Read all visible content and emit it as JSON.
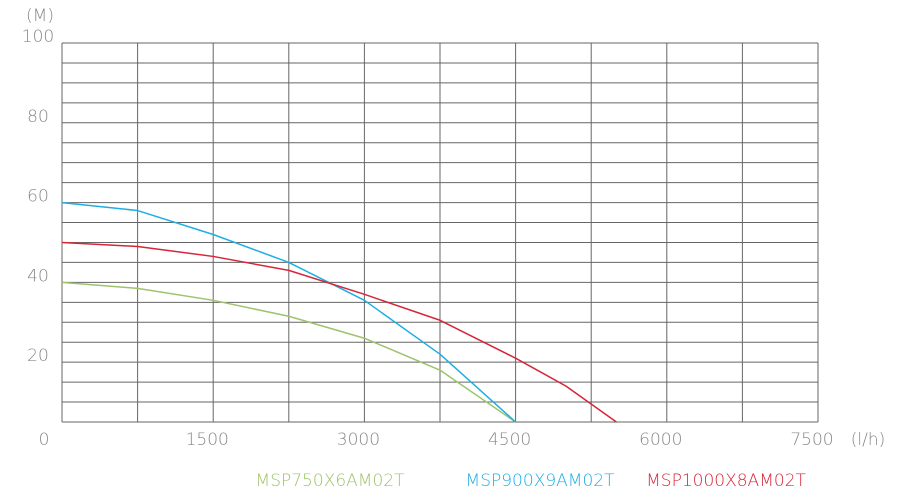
{
  "chart_data": {
    "type": "line",
    "y_unit": "(M)",
    "x_unit": "(l/h)",
    "xlim": [
      0,
      7500
    ],
    "xticks": [
      0,
      1500,
      3000,
      4500,
      6000,
      7500
    ],
    "x_grid_step": 750,
    "ylim": [
      5,
      100
    ],
    "yticks": [
      20,
      40,
      60,
      80,
      100
    ],
    "y_grid_step": 5,
    "grid": true,
    "series": [
      {
        "name": "MSP750X6AM02T",
        "color": "#9dc36c",
        "x": [
          0,
          750,
          1500,
          2250,
          3000,
          3750,
          4500
        ],
        "values": [
          40,
          38.5,
          35.5,
          31.5,
          26,
          18,
          5
        ]
      },
      {
        "name": "MSP900X9AM02T",
        "color": "#1eaee4",
        "x": [
          0,
          750,
          1500,
          2250,
          3000,
          3750,
          4500
        ],
        "values": [
          60,
          58,
          52,
          45,
          35.5,
          22,
          5
        ]
      },
      {
        "name": "MSP1000X8AM02T",
        "color": "#d6263a",
        "x": [
          0,
          750,
          1500,
          2250,
          3000,
          3750,
          4500,
          5000,
          5500
        ],
        "values": [
          50,
          49,
          46.5,
          43,
          37,
          30.5,
          21,
          14,
          5
        ]
      }
    ]
  }
}
